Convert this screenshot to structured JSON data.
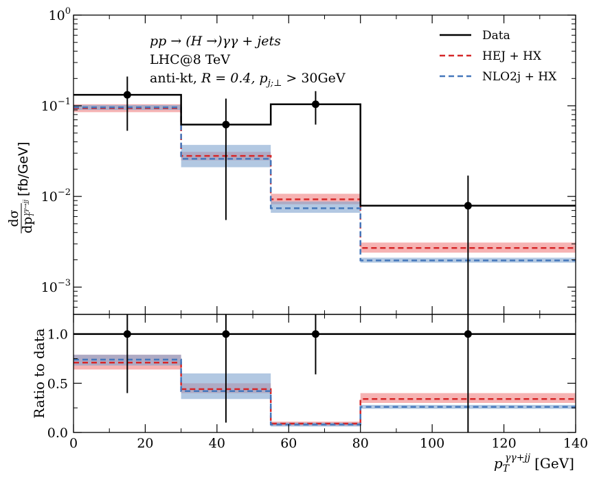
{
  "chart_data": {
    "type": "step-histogram",
    "x_bins": [
      0,
      30,
      55,
      80,
      140
    ],
    "xlim": [
      0,
      140
    ],
    "x_ticks": [
      "0",
      "20",
      "40",
      "60",
      "80",
      "100",
      "120",
      "140"
    ],
    "x_tick_values": [
      0,
      20,
      40,
      60,
      80,
      100,
      120,
      140
    ],
    "xlabel": "p_T^{γγ+jj} [GeV]",
    "xlabel_main": "p",
    "xlabel_sub": "T",
    "xlabel_sup": "γγ+jj",
    "xlabel_unit": "[GeV]",
    "annotation": {
      "process": "pp → (H →)γγ + jets",
      "energy": "LHC@8 TeV",
      "cuts": "anti-kt, R = 0.4, p_{j;⊥} > 30GeV",
      "cuts_prefix": "anti-kt,",
      "cuts_R": "R = 0.4,",
      "cuts_p": "p",
      "cuts_p_sub": "j;⊥",
      "cuts_suffix": "> 30GeV"
    },
    "top_panel": {
      "ylabel": "dσ/dp_T^{γγ→jj} [fb/GeV]",
      "ylabel_num": "dσ",
      "ylabel_den": "dp",
      "ylabel_den_sub": "T",
      "ylabel_den_sup": "γγ→jj",
      "ylabel_unit": "[fb/GeV]",
      "yscale": "log",
      "ylim": [
        0.0005,
        1
      ],
      "y_tick_values": [
        0.001,
        0.01,
        0.1,
        1
      ],
      "y_tick_mantissa": [
        "10",
        "10",
        "10",
        "10"
      ],
      "y_tick_exponents": [
        "−3",
        "−2",
        "−1",
        "0"
      ],
      "data": {
        "name": "Data",
        "x": [
          15,
          42.5,
          67.5,
          110
        ],
        "y": [
          0.132,
          0.062,
          0.104,
          0.0079
        ],
        "yerr_low": [
          0.079,
          0.0565,
          0.042,
          0.0079
        ],
        "yerr_high": [
          0.078,
          0.058,
          0.041,
          0.0091
        ],
        "bin_values": [
          0.132,
          0.062,
          0.104,
          0.0079
        ],
        "color": "#000000"
      },
      "series": [
        {
          "name": "HEJ + HX",
          "values": [
            0.094,
            0.028,
            0.0093,
            0.0027
          ],
          "band_low": [
            0.085,
            0.025,
            0.0082,
            0.0024
          ],
          "band_high": [
            0.104,
            0.031,
            0.0107,
            0.0031
          ],
          "color": "#d62728",
          "band_color": "#f08080"
        },
        {
          "name": "NLO2j + HX",
          "values": [
            0.096,
            0.026,
            0.0074,
            0.00197
          ],
          "band_low": [
            0.09,
            0.021,
            0.0066,
            0.00186
          ],
          "band_high": [
            0.102,
            0.037,
            0.0088,
            0.00211
          ],
          "color": "#4477bb",
          "band_color": "#7fa3cf"
        }
      ]
    },
    "ratio_panel": {
      "ylabel": "Ratio to data",
      "ylim": [
        0,
        1.2
      ],
      "y_tick_values": [
        0,
        0.5,
        1
      ],
      "y_ticks": [
        "0.0",
        "0.5",
        "1.0"
      ],
      "data": {
        "x": [
          15,
          42.5,
          67.5,
          110
        ],
        "y": [
          1,
          1,
          1,
          1
        ],
        "yerr_low": [
          0.6,
          0.9,
          0.41,
          1.0
        ],
        "yerr_high": [
          0.6,
          0.9,
          0.41,
          1.0
        ]
      },
      "series": [
        {
          "name": "HEJ + HX",
          "values": [
            0.71,
            0.44,
            0.09,
            0.34
          ],
          "band_low": [
            0.64,
            0.4,
            0.07,
            0.3
          ],
          "band_high": [
            0.79,
            0.5,
            0.11,
            0.4
          ],
          "color": "#d62728",
          "band_color": "#f08080"
        },
        {
          "name": "NLO2j + HX",
          "values": [
            0.74,
            0.42,
            0.08,
            0.26
          ],
          "band_low": [
            0.68,
            0.34,
            0.06,
            0.24
          ],
          "band_high": [
            0.79,
            0.6,
            0.1,
            0.28
          ],
          "color": "#4477bb",
          "band_color": "#7fa3cf"
        }
      ]
    },
    "legend": {
      "position": "top-right",
      "entries": [
        "Data",
        "HEJ + HX",
        "NLO2j + HX"
      ]
    }
  }
}
